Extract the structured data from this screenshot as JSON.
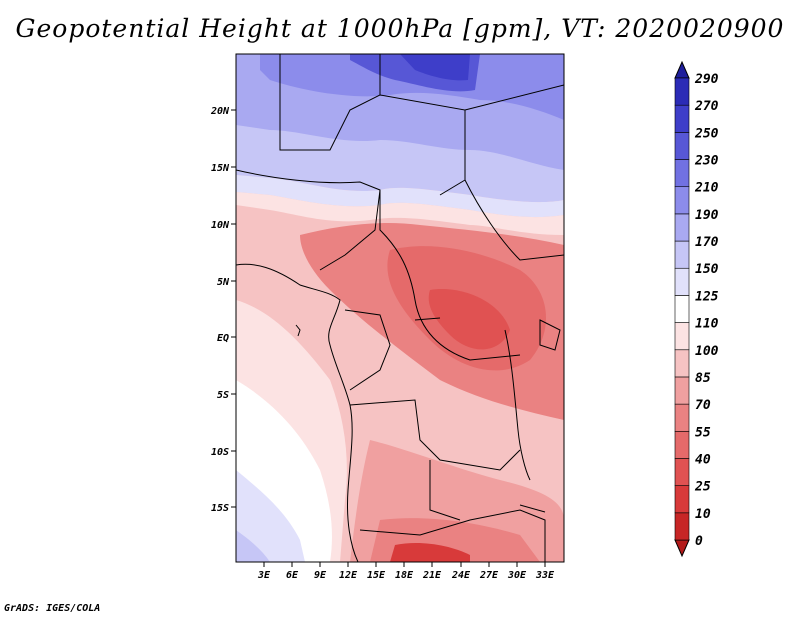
{
  "title": "Geopotential Height at 1000hPa [gpm], VT: 2020020900",
  "credit": "GrADS: IGES/COLA",
  "map": {
    "lon_labels": [
      "3E",
      "6E",
      "9E",
      "12E",
      "15E",
      "18E",
      "21E",
      "24E",
      "27E",
      "30E",
      "33E"
    ],
    "lat_labels": [
      "20N",
      "15N",
      "10N",
      "5N",
      "EQ",
      "5S",
      "10S",
      "15S"
    ]
  },
  "colorbar": {
    "levels": [
      "0",
      "10",
      "25",
      "40",
      "55",
      "70",
      "85",
      "100",
      "110",
      "125",
      "150",
      "170",
      "190",
      "210",
      "230",
      "250",
      "270",
      "290"
    ],
    "colors": [
      "#b31a1a",
      "#c72626",
      "#d83a3a",
      "#e05252",
      "#e56a6a",
      "#ea8282",
      "#f0a0a0",
      "#f6c3c3",
      "#fce3e3",
      "#ffffff",
      "#e1e1fb",
      "#c6c6f6",
      "#a9a9f1",
      "#8c8ceb",
      "#7171e2",
      "#5757d6",
      "#3e3ec9",
      "#2b2bb6",
      "#1e1e9c"
    ]
  },
  "chart_data": {
    "type": "heatmap",
    "title": "Geopotential Height at 1000hPa [gpm], VT: 2020020900",
    "xlabel": "",
    "ylabel": "",
    "x_ticks": [
      "3E",
      "6E",
      "9E",
      "12E",
      "15E",
      "18E",
      "21E",
      "24E",
      "27E",
      "30E",
      "33E"
    ],
    "y_ticks": [
      "20N",
      "15N",
      "10N",
      "5N",
      "EQ",
      "5S",
      "10S",
      "15S"
    ],
    "xlim": [
      0,
      35
    ],
    "ylim": [
      -20,
      25
    ],
    "colorbar_levels": [
      0,
      10,
      25,
      40,
      55,
      70,
      85,
      100,
      110,
      125,
      150,
      170,
      190,
      210,
      230,
      250,
      270,
      290
    ]
  }
}
